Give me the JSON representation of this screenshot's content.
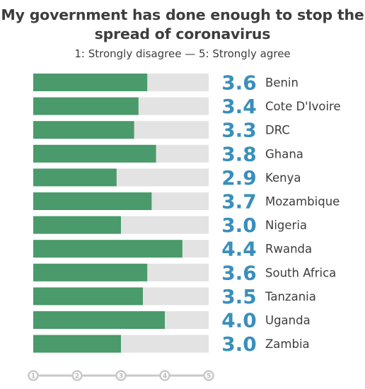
{
  "chart_data": {
    "type": "bar",
    "orientation": "horizontal",
    "title": "My government has done enough to stop the spread of coronavirus",
    "subtitle": "1: Strongly disagree — 5: Strongly agree",
    "categories": [
      "Benin",
      "Cote D'Ivoire",
      "DRC",
      "Ghana",
      "Kenya",
      "Mozambique",
      "Nigeria",
      "Rwanda",
      "South Africa",
      "Tanzania",
      "Uganda",
      "Zambia"
    ],
    "values": [
      3.6,
      3.4,
      3.3,
      3.8,
      2.9,
      3.7,
      3.0,
      4.4,
      3.6,
      3.5,
      4.0,
      3.0
    ],
    "value_labels": [
      "3.6",
      "3.4",
      "3.3",
      "3.8",
      "2.9",
      "3.7",
      "3.0",
      "4.4",
      "3.6",
      "3.5",
      "4.0",
      "3.0"
    ],
    "xlim": [
      1,
      5
    ],
    "xticks": [
      "1",
      "2",
      "3",
      "4",
      "5"
    ],
    "grid": false,
    "colors": {
      "bar": "#4a9a6b",
      "track": "#e3e3e3",
      "value_text": "#3a8fba",
      "label_text": "#3d3d3d",
      "axis": "#c9c9c9",
      "axis_text": "#bdbdbd"
    }
  }
}
